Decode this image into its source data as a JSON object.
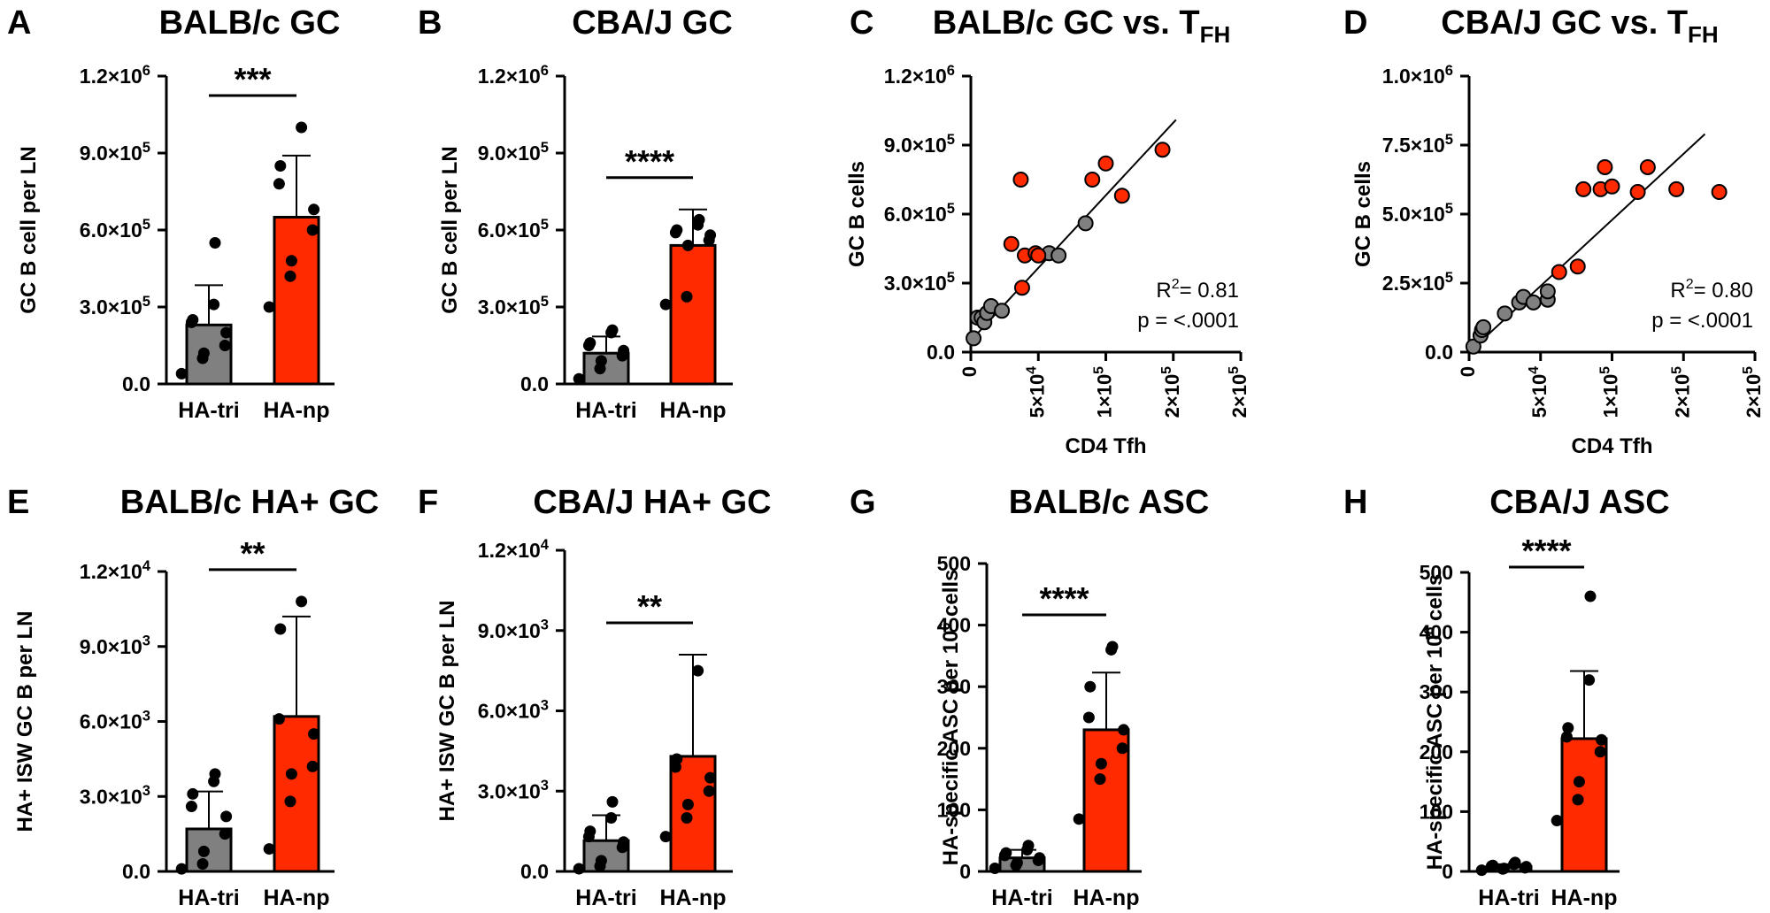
{
  "colors": {
    "tri": "#808080",
    "np": "#ff2a00",
    "axis": "#000000",
    "point": "#000000"
  },
  "chart_data": [
    {
      "id": "A",
      "type": "bar",
      "title": "BALB/c GC",
      "panel_label": "A",
      "ylabel": "GC B cell per LN",
      "xlabel": "",
      "ylim": [
        0,
        1200000
      ],
      "yticks": [
        0,
        300000,
        600000,
        900000,
        1200000
      ],
      "ytick_labels": [
        {
          "base": "0.0",
          "exp": ""
        },
        {
          "base": "3.0×10",
          "exp": "5"
        },
        {
          "base": "6.0×10",
          "exp": "5"
        },
        {
          "base": "9.0×10",
          "exp": "5"
        },
        {
          "base": "1.2×10",
          "exp": "6"
        }
      ],
      "categories": [
        "HA-tri",
        "HA-np"
      ],
      "means": [
        230000,
        650000
      ],
      "sd_upper": [
        385000,
        890000
      ],
      "points": [
        [
          40000,
          100000,
          120000,
          150000,
          200000,
          240000,
          250000,
          310000,
          550000
        ],
        [
          300000,
          420000,
          480000,
          600000,
          680000,
          780000,
          850000,
          1000000
        ]
      ],
      "significance": "***"
    },
    {
      "id": "B",
      "type": "bar",
      "title": "CBA/J GC",
      "panel_label": "B",
      "ylabel": "GC B cell per LN",
      "xlabel": "",
      "ylim": [
        0,
        1200000
      ],
      "yticks": [
        0,
        300000,
        600000,
        900000,
        1200000
      ],
      "ytick_labels": [
        {
          "base": "0.0",
          "exp": ""
        },
        {
          "base": "3.0×10",
          "exp": "5"
        },
        {
          "base": "6.0×10",
          "exp": "5"
        },
        {
          "base": "9.0×10",
          "exp": "5"
        },
        {
          "base": "1.2×10",
          "exp": "6"
        }
      ],
      "categories": [
        "HA-tri",
        "HA-np"
      ],
      "means": [
        120000,
        540000
      ],
      "sd_upper": [
        185000,
        680000
      ],
      "points": [
        [
          20000,
          60000,
          90000,
          110000,
          130000,
          150000,
          160000,
          200000,
          210000
        ],
        [
          310000,
          340000,
          540000,
          560000,
          580000,
          590000,
          600000,
          620000,
          640000
        ]
      ],
      "significance": "****"
    },
    {
      "id": "C",
      "type": "scatter",
      "title": "BALB/c GC vs. T",
      "title_sub": "FH",
      "panel_label": "C",
      "ylabel": "GC B cells",
      "xlabel": "CD4 Tfh",
      "xlim": [
        0,
        200000
      ],
      "ylim": [
        0,
        1200000
      ],
      "xticks": [
        0,
        50000,
        100000,
        150000,
        200000
      ],
      "xtick_labels": [
        {
          "base": "0",
          "exp": ""
        },
        {
          "base": "5×10",
          "exp": "4"
        },
        {
          "base": "1×10",
          "exp": "5"
        },
        {
          "base": "2×10",
          "exp": "5"
        },
        {
          "base": "2×10",
          "exp": "5"
        }
      ],
      "yticks": [
        0,
        300000,
        600000,
        900000,
        1200000
      ],
      "ytick_labels": [
        {
          "base": "0.0",
          "exp": ""
        },
        {
          "base": "3.0×10",
          "exp": "5"
        },
        {
          "base": "6.0×10",
          "exp": "5"
        },
        {
          "base": "9.0×10",
          "exp": "5"
        },
        {
          "base": "1.2×10",
          "exp": "6"
        }
      ],
      "series": [
        {
          "name": "HA-tri",
          "x": [
            2000,
            5000,
            8000,
            10000,
            12000,
            15000,
            23000,
            58000,
            65000,
            85000
          ],
          "y": [
            60000,
            150000,
            150000,
            130000,
            170000,
            200000,
            180000,
            430000,
            420000,
            560000
          ]
        },
        {
          "name": "HA-np",
          "x": [
            30000,
            37000,
            38000,
            40000,
            48000,
            50000,
            90000,
            100000,
            112000,
            142000
          ],
          "y": [
            470000,
            750000,
            280000,
            420000,
            430000,
            420000,
            750000,
            820000,
            680000,
            880000
          ]
        }
      ],
      "fit_line": {
        "x": [
          0,
          152000
        ],
        "y": [
          50000,
          1010000
        ]
      },
      "annotation_r2_label": "R",
      "annotation_r2_exp": "2",
      "annotation_r2_value": "= 0.81",
      "annotation_p": "p = <.0001"
    },
    {
      "id": "D",
      "type": "scatter",
      "title": "CBA/J GC vs. T",
      "title_sub": "FH",
      "panel_label": "D",
      "ylabel": "GC B cells",
      "xlabel": "CD4 Tfh",
      "xlim": [
        0,
        200000
      ],
      "ylim": [
        0,
        1000000
      ],
      "xticks": [
        0,
        50000,
        100000,
        150000,
        200000
      ],
      "xtick_labels": [
        {
          "base": "0",
          "exp": ""
        },
        {
          "base": "5×10",
          "exp": "4"
        },
        {
          "base": "1×10",
          "exp": "5"
        },
        {
          "base": "2×10",
          "exp": "5"
        },
        {
          "base": "2×10",
          "exp": "5"
        }
      ],
      "yticks": [
        0,
        250000,
        500000,
        750000,
        1000000
      ],
      "ytick_labels": [
        {
          "base": "0.0",
          "exp": ""
        },
        {
          "base": "2.5×10",
          "exp": "5"
        },
        {
          "base": "5.0×10",
          "exp": "5"
        },
        {
          "base": "7.5×10",
          "exp": "5"
        },
        {
          "base": "1.0×10",
          "exp": "6"
        }
      ],
      "series": [
        {
          "name": "HA-tri",
          "x": [
            3000,
            8000,
            9000,
            10000,
            25000,
            35000,
            38000,
            45000,
            55000,
            55000
          ],
          "y": [
            20000,
            60000,
            80000,
            90000,
            140000,
            180000,
            200000,
            180000,
            190000,
            220000
          ]
        },
        {
          "name": "HA-np",
          "x": [
            63000,
            76000,
            92000,
            95000,
            100000,
            118000,
            125000,
            145000,
            175000,
            80000
          ],
          "y": [
            290000,
            310000,
            590000,
            670000,
            600000,
            580000,
            670000,
            590000,
            580000,
            590000
          ]
        }
      ],
      "fit_line": {
        "x": [
          0,
          165000
        ],
        "y": [
          0,
          790000
        ]
      },
      "annotation_r2_label": "R",
      "annotation_r2_exp": "2",
      "annotation_r2_value": "= 0.80",
      "annotation_p": "p = <.0001"
    },
    {
      "id": "E",
      "type": "bar",
      "title": "BALB/c HA+ GC",
      "panel_label": "E",
      "ylabel": "HA+ ISW GC B per LN",
      "xlabel": "",
      "ylim": [
        0,
        12000
      ],
      "yticks": [
        0,
        3000,
        6000,
        9000,
        12000
      ],
      "ytick_labels": [
        {
          "base": "0.0",
          "exp": ""
        },
        {
          "base": "3.0×10",
          "exp": "3"
        },
        {
          "base": "6.0×10",
          "exp": "3"
        },
        {
          "base": "9.0×10",
          "exp": "3"
        },
        {
          "base": "1.2×10",
          "exp": "4"
        }
      ],
      "categories": [
        "HA-tri",
        "HA-np"
      ],
      "means": [
        1700,
        6200
      ],
      "sd_upper": [
        3200,
        10200
      ],
      "points": [
        [
          100,
          300,
          800,
          1500,
          2200,
          2600,
          3100,
          3600,
          3900
        ],
        [
          900,
          2800,
          3900,
          4200,
          5500,
          6100,
          9700,
          10800
        ]
      ],
      "significance": "**"
    },
    {
      "id": "F",
      "type": "bar",
      "title": "CBA/J HA+ GC",
      "panel_label": "F",
      "ylabel": "HA+ ISW GC B per LN",
      "xlabel": "",
      "ylim": [
        0,
        12000
      ],
      "yticks": [
        0,
        3000,
        6000,
        9000,
        12000
      ],
      "ytick_labels": [
        {
          "base": "0.0",
          "exp": ""
        },
        {
          "base": "3.0×10",
          "exp": "3"
        },
        {
          "base": "6.0×10",
          "exp": "3"
        },
        {
          "base": "9.0×10",
          "exp": "3"
        },
        {
          "base": "1.2×10",
          "exp": "4"
        }
      ],
      "categories": [
        "HA-tri",
        "HA-np"
      ],
      "means": [
        1150,
        4300
      ],
      "sd_upper": [
        2100,
        8100
      ],
      "points": [
        [
          100,
          200,
          400,
          900,
          1100,
          1300,
          1500,
          2000,
          2600
        ],
        [
          1300,
          2000,
          2500,
          3000,
          3500,
          3900,
          4200,
          7500
        ]
      ],
      "significance": "**"
    },
    {
      "id": "G",
      "type": "bar",
      "title": "BALB/c ASC",
      "panel_label": "G",
      "ylabel": "HA-specific ASC per 10",
      "ylabel_exp": "6",
      "ylabel_tail": " cells",
      "xlabel": "",
      "ylim": [
        0,
        500
      ],
      "yticks": [
        0,
        100,
        200,
        300,
        400,
        500
      ],
      "ytick_labels": [
        {
          "base": "0",
          "exp": ""
        },
        {
          "base": "100",
          "exp": ""
        },
        {
          "base": "200",
          "exp": ""
        },
        {
          "base": "300",
          "exp": ""
        },
        {
          "base": "400",
          "exp": ""
        },
        {
          "base": "500",
          "exp": ""
        }
      ],
      "categories": [
        "HA-tri",
        "HA-np"
      ],
      "means": [
        22,
        230
      ],
      "sd_upper": [
        35,
        323
      ],
      "points": [
        [
          5,
          10,
          14,
          18,
          22,
          26,
          30,
          35,
          42
        ],
        [
          85,
          150,
          175,
          200,
          230,
          250,
          300,
          360,
          365
        ]
      ],
      "significance": "****"
    },
    {
      "id": "H",
      "type": "bar",
      "title": "CBA/J ASC",
      "panel_label": "H",
      "ylabel": "HA-specific ASC per 10",
      "ylabel_exp": "6",
      "ylabel_tail": " cells",
      "xlabel": "",
      "ylim": [
        0,
        500
      ],
      "yticks": [
        0,
        100,
        200,
        300,
        400,
        500
      ],
      "ytick_labels": [
        {
          "base": "0",
          "exp": ""
        },
        {
          "base": "100",
          "exp": ""
        },
        {
          "base": "200",
          "exp": ""
        },
        {
          "base": "300",
          "exp": ""
        },
        {
          "base": "400",
          "exp": ""
        },
        {
          "base": "500",
          "exp": ""
        }
      ],
      "categories": [
        "HA-tri",
        "HA-np"
      ],
      "means": [
        8,
        222
      ],
      "sd_upper": [
        12,
        335
      ],
      "points": [
        [
          2,
          4,
          5,
          6,
          8,
          9,
          10,
          12,
          15
        ],
        [
          85,
          120,
          150,
          200,
          220,
          225,
          240,
          320,
          460
        ]
      ],
      "significance": "****"
    }
  ]
}
